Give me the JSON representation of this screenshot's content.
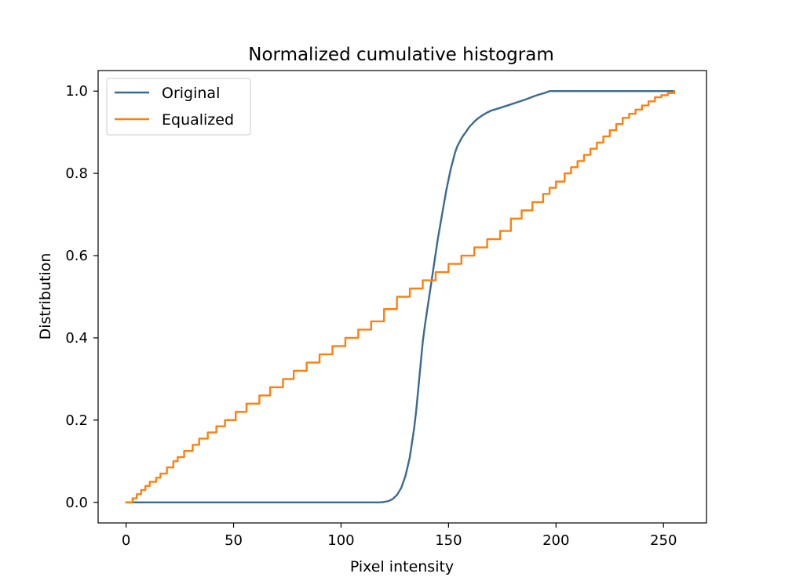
{
  "chart_data": {
    "type": "line",
    "title": "Normalized cumulative histogram",
    "xlabel": "Pixel intensity",
    "ylabel": "Distribution",
    "xlim": [
      -13,
      270
    ],
    "ylim": [
      -0.05,
      1.05
    ],
    "xticks": [
      0,
      50,
      100,
      150,
      200,
      250
    ],
    "xtick_labels": [
      "0",
      "50",
      "100",
      "150",
      "200",
      "250"
    ],
    "yticks": [
      0.0,
      0.2,
      0.4,
      0.6,
      0.8,
      1.0
    ],
    "ytick_labels": [
      "0.0",
      "0.2",
      "0.4",
      "0.6",
      "0.8",
      "1.0"
    ],
    "grid": false,
    "legend_position": "upper-left",
    "series": [
      {
        "name": "Original",
        "color": "#3b6a91",
        "style": "smooth",
        "x": [
          0,
          118,
          120,
          122,
          124,
          126,
          128,
          130,
          132,
          134,
          135,
          136,
          137,
          138,
          139,
          140,
          141,
          142,
          143,
          144,
          145,
          146,
          147,
          148,
          149,
          150,
          151,
          152,
          153,
          154,
          155,
          156,
          157,
          158,
          159,
          160,
          161,
          162,
          164,
          166,
          168,
          170,
          172,
          175,
          178,
          182,
          186,
          190,
          193,
          195,
          196,
          197,
          198,
          200,
          210,
          230,
          255
        ],
        "y": [
          0.0,
          0.0,
          0.001,
          0.003,
          0.008,
          0.018,
          0.035,
          0.065,
          0.11,
          0.18,
          0.225,
          0.28,
          0.335,
          0.39,
          0.43,
          0.465,
          0.5,
          0.535,
          0.57,
          0.605,
          0.64,
          0.67,
          0.7,
          0.73,
          0.76,
          0.785,
          0.81,
          0.83,
          0.85,
          0.865,
          0.875,
          0.885,
          0.893,
          0.9,
          0.908,
          0.915,
          0.92,
          0.926,
          0.935,
          0.942,
          0.948,
          0.953,
          0.956,
          0.961,
          0.966,
          0.973,
          0.98,
          0.988,
          0.993,
          0.996,
          0.998,
          1.0,
          1.0,
          1.0,
          1.0,
          1.0,
          1.0
        ]
      },
      {
        "name": "Equalized",
        "color": "#ff7f0e",
        "style": "steps",
        "x": [
          0,
          3,
          5,
          7,
          9,
          11,
          14,
          16,
          19,
          22,
          24,
          27,
          31,
          34,
          38,
          42,
          46,
          51,
          56,
          62,
          67,
          73,
          78,
          84,
          90,
          96,
          102,
          108,
          114,
          120,
          126,
          132,
          138,
          144,
          150,
          156,
          162,
          168,
          174,
          179,
          184,
          189,
          194,
          197,
          200,
          204,
          207,
          210,
          213,
          216,
          219,
          222,
          225,
          228,
          231,
          234,
          237,
          240,
          243,
          246,
          249,
          252,
          255
        ],
        "y": [
          0.0,
          0.01,
          0.02,
          0.03,
          0.04,
          0.05,
          0.06,
          0.07,
          0.085,
          0.1,
          0.11,
          0.125,
          0.14,
          0.155,
          0.17,
          0.185,
          0.2,
          0.22,
          0.24,
          0.26,
          0.28,
          0.3,
          0.32,
          0.34,
          0.36,
          0.38,
          0.4,
          0.42,
          0.44,
          0.47,
          0.5,
          0.52,
          0.54,
          0.56,
          0.58,
          0.6,
          0.62,
          0.64,
          0.66,
          0.69,
          0.71,
          0.73,
          0.75,
          0.765,
          0.78,
          0.8,
          0.815,
          0.83,
          0.845,
          0.86,
          0.875,
          0.89,
          0.905,
          0.92,
          0.935,
          0.945,
          0.955,
          0.965,
          0.975,
          0.985,
          0.99,
          0.995,
          1.0
        ]
      }
    ]
  }
}
